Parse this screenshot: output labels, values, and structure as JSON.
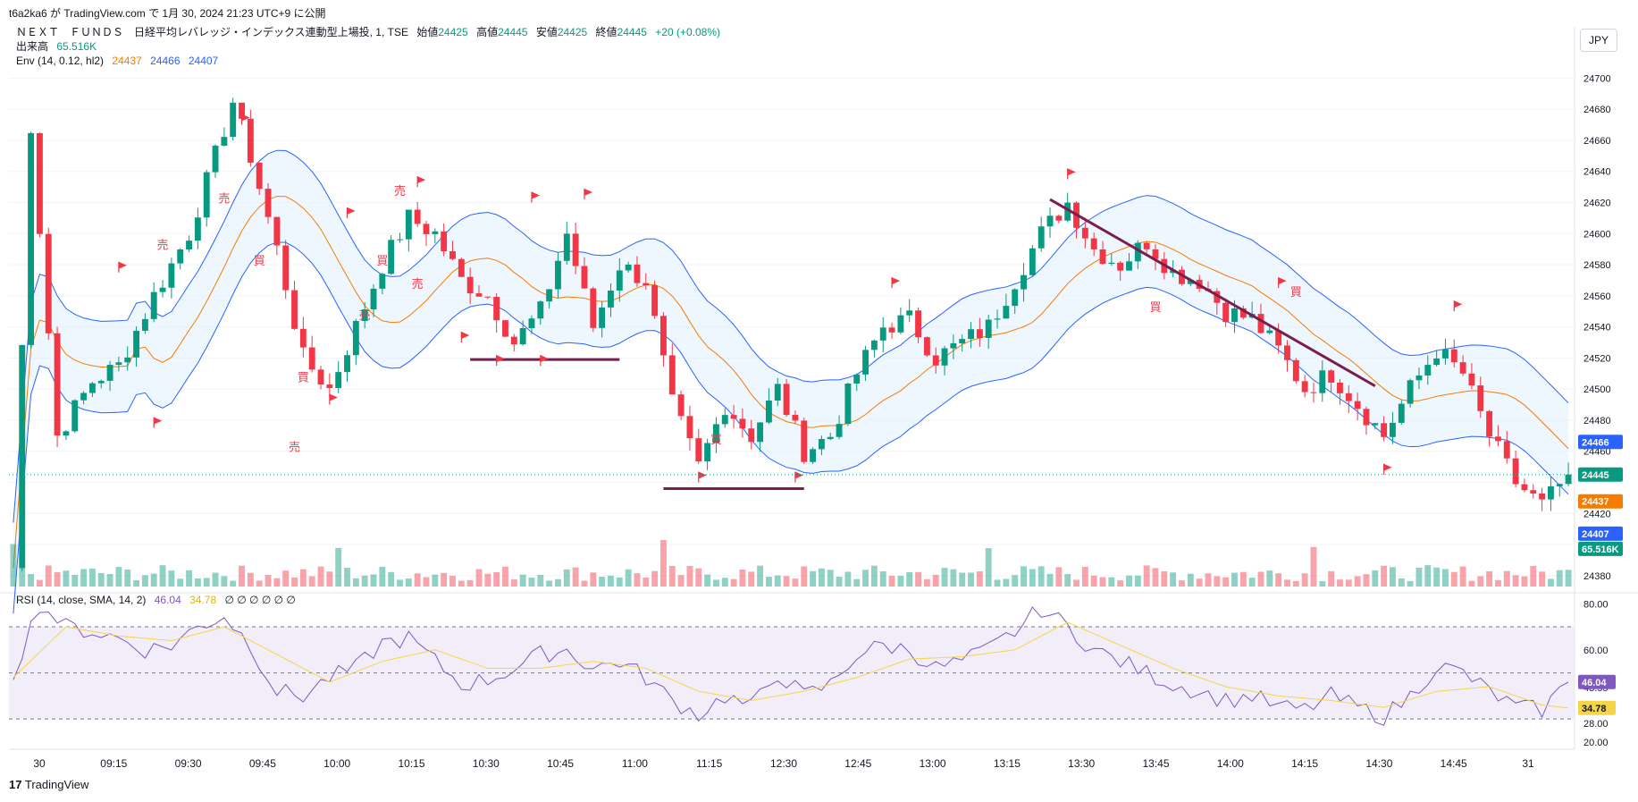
{
  "header": {
    "text": "t6a2ka6 が TradingView.com で 1月 30, 2024 21:23 UTC+9 に公開"
  },
  "currency": "JPY",
  "legend": {
    "symbol": "ＮＥＸＴ　ＦＵＮＤＳ　日経平均レバレッジ・インデックス連動型上場投, 1, TSE",
    "ohlc": [
      {
        "label": "始値",
        "value": "24425"
      },
      {
        "label": "高値",
        "value": "24445"
      },
      {
        "label": "安値",
        "value": "24425"
      },
      {
        "label": "終値",
        "value": "24445"
      }
    ],
    "change": "+20 (+0.08%)",
    "volume_label": "出来高",
    "volume_value": "65.516K",
    "env_label": "Env (14, 0.12, hl2)",
    "env_values": [
      "24437",
      "24466",
      "24407"
    ],
    "rsi_label": "RSI (14, close, SMA, 14, 2)",
    "rsi_values": [
      "46.04",
      "34.78"
    ],
    "rsi_extra": "∅ ∅ ∅ ∅ ∅ ∅"
  },
  "footer": {
    "brand": "TradingView",
    "logo_text": "17"
  },
  "colors": {
    "up": "#089981",
    "down": "#f23645",
    "env_mid": "#f57c00",
    "env_band": "#2962ff",
    "band_fill": "#e3f2fd",
    "rsi": "#7e57c2",
    "rsi_ma": "#f5d547",
    "rsi_fill": "#ede7f6",
    "annotation": "#7b1d4f",
    "flag": "#f23645"
  },
  "chart_data": [
    {
      "type": "line",
      "title": "",
      "price_axis": {
        "ticks": [
          24380,
          24400,
          24420,
          24440,
          24460,
          24480,
          24500,
          24520,
          24540,
          24560,
          24580,
          24600,
          24620,
          24640,
          24660,
          24680,
          24700
        ],
        "labels": [
          "24380",
          "",
          "24420",
          "",
          "24460",
          "24480",
          "24500",
          "24520",
          "24540",
          "24560",
          "24580",
          "24600",
          "24620",
          "24640",
          "24660",
          "24680",
          "24700"
        ],
        "range": [
          24373,
          24710
        ]
      },
      "time_axis": {
        "labels": [
          "30",
          "09:15",
          "09:30",
          "09:45",
          "10:00",
          "10:15",
          "10:30",
          "10:45",
          "11:00",
          "11:15",
          "12:30",
          "12:45",
          "13:00",
          "13:15",
          "13:30",
          "13:45",
          "14:00",
          "14:15",
          "14:30",
          "14:45",
          "31"
        ]
      },
      "price_path": [
        [
          0,
          24385
        ],
        [
          2,
          24670
        ],
        [
          5,
          24470
        ],
        [
          9,
          24505
        ],
        [
          12,
          24515
        ],
        [
          16,
          24560
        ],
        [
          20,
          24600
        ],
        [
          23,
          24650
        ],
        [
          25,
          24685
        ],
        [
          27,
          24650
        ],
        [
          30,
          24590
        ],
        [
          33,
          24520
        ],
        [
          36,
          24500
        ],
        [
          39,
          24540
        ],
        [
          42,
          24580
        ],
        [
          45,
          24610
        ],
        [
          48,
          24600
        ],
        [
          51,
          24570
        ],
        [
          54,
          24560
        ],
        [
          57,
          24530
        ],
        [
          60,
          24550
        ],
        [
          63,
          24600
        ],
        [
          66,
          24540
        ],
        [
          69,
          24580
        ],
        [
          72,
          24570
        ],
        [
          75,
          24490
        ],
        [
          78,
          24450
        ],
        [
          81,
          24490
        ],
        [
          84,
          24470
        ],
        [
          87,
          24500
        ],
        [
          90,
          24460
        ],
        [
          93,
          24470
        ],
        [
          96,
          24510
        ],
        [
          99,
          24540
        ],
        [
          102,
          24545
        ],
        [
          105,
          24520
        ],
        [
          108,
          24530
        ],
        [
          111,
          24540
        ],
        [
          114,
          24570
        ],
        [
          117,
          24600
        ],
        [
          120,
          24620
        ],
        [
          123,
          24590
        ],
        [
          126,
          24580
        ],
        [
          129,
          24595
        ],
        [
          132,
          24575
        ],
        [
          135,
          24570
        ],
        [
          138,
          24550
        ],
        [
          141,
          24545
        ],
        [
          144,
          24525
        ],
        [
          147,
          24500
        ],
        [
          150,
          24510
        ],
        [
          153,
          24490
        ],
        [
          156,
          24470
        ],
        [
          159,
          24500
        ],
        [
          162,
          24525
        ],
        [
          165,
          24510
        ],
        [
          168,
          24470
        ],
        [
          171,
          24440
        ],
        [
          174,
          24425
        ],
        [
          177,
          24445
        ]
      ],
      "envelope": {
        "middle": "24437",
        "upper": "24466",
        "lower": "24407",
        "pct": 0.12
      },
      "current_price": 24445,
      "volume_current": "65.516K",
      "annotations": {
        "sell_marks": [
          [
            24,
            24620
          ],
          [
            17,
            24590
          ],
          [
            44,
            24625
          ],
          [
            46,
            24565
          ],
          [
            40,
            24545
          ],
          [
            32,
            24460
          ]
        ],
        "buy_marks": [
          [
            28,
            24580
          ],
          [
            42,
            24580
          ],
          [
            33,
            24505
          ],
          [
            80,
            24465
          ],
          [
            130,
            24550
          ],
          [
            146,
            24560
          ]
        ],
        "text_sell": "売",
        "text_buy": "買",
        "support_lines": [
          [
            [
              52,
              24519
            ],
            [
              69,
              24519
            ]
          ],
          [
            [
              74,
              24436
            ],
            [
              90,
              24436
            ]
          ]
        ],
        "trend_line": [
          [
            118,
            24622
          ],
          [
            155,
            24502
          ]
        ],
        "flags": [
          [
            12,
            24575
          ],
          [
            16,
            24475
          ],
          [
            26,
            24670
          ],
          [
            36,
            24490
          ],
          [
            38,
            24610
          ],
          [
            46,
            24630
          ],
          [
            51,
            24530
          ],
          [
            55,
            24515
          ],
          [
            60,
            24515
          ],
          [
            59,
            24620
          ],
          [
            65,
            24622
          ],
          [
            78,
            24440
          ],
          [
            89,
            24440
          ],
          [
            100,
            24565
          ],
          [
            120,
            24635
          ],
          [
            144,
            24565
          ],
          [
            156,
            24445
          ],
          [
            164,
            24550
          ]
        ]
      }
    },
    {
      "type": "line",
      "title": "",
      "rsi_axis": {
        "ticks": [
          20,
          28,
          43.55,
          60,
          80
        ],
        "labels": [
          "20.00",
          "28.00",
          "43.55",
          "60.00",
          "80.00"
        ],
        "range": [
          18,
          84
        ]
      },
      "levels": [
        70,
        50,
        30
      ],
      "current_rsi": 46.04,
      "current_ma": 34.78,
      "rsi_path": [
        [
          0,
          50
        ],
        [
          3,
          80
        ],
        [
          6,
          70
        ],
        [
          9,
          68
        ],
        [
          12,
          65
        ],
        [
          15,
          60
        ],
        [
          18,
          62
        ],
        [
          21,
          70
        ],
        [
          24,
          75
        ],
        [
          27,
          62
        ],
        [
          30,
          42
        ],
        [
          33,
          40
        ],
        [
          36,
          48
        ],
        [
          39,
          52
        ],
        [
          42,
          63
        ],
        [
          45,
          65
        ],
        [
          48,
          55
        ],
        [
          51,
          45
        ],
        [
          54,
          47
        ],
        [
          57,
          52
        ],
        [
          60,
          58
        ],
        [
          63,
          60
        ],
        [
          66,
          52
        ],
        [
          69,
          55
        ],
        [
          72,
          48
        ],
        [
          75,
          38
        ],
        [
          78,
          32
        ],
        [
          81,
          40
        ],
        [
          84,
          35
        ],
        [
          87,
          50
        ],
        [
          90,
          40
        ],
        [
          93,
          45
        ],
        [
          96,
          58
        ],
        [
          99,
          62
        ],
        [
          102,
          60
        ],
        [
          105,
          52
        ],
        [
          108,
          55
        ],
        [
          111,
          60
        ],
        [
          114,
          68
        ],
        [
          117,
          78
        ],
        [
          120,
          70
        ],
        [
          123,
          60
        ],
        [
          126,
          55
        ],
        [
          129,
          50
        ],
        [
          132,
          45
        ],
        [
          135,
          42
        ],
        [
          138,
          38
        ],
        [
          141,
          40
        ],
        [
          144,
          35
        ],
        [
          147,
          34
        ],
        [
          150,
          40
        ],
        [
          153,
          35
        ],
        [
          156,
          31
        ],
        [
          159,
          40
        ],
        [
          162,
          53
        ],
        [
          165,
          50
        ],
        [
          168,
          42
        ],
        [
          171,
          35
        ],
        [
          174,
          34
        ],
        [
          177,
          46
        ]
      ],
      "ma_path": [
        [
          0,
          48
        ],
        [
          6,
          70
        ],
        [
          12,
          66
        ],
        [
          18,
          64
        ],
        [
          24,
          70
        ],
        [
          30,
          58
        ],
        [
          36,
          46
        ],
        [
          42,
          55
        ],
        [
          48,
          60
        ],
        [
          54,
          52
        ],
        [
          60,
          52
        ],
        [
          66,
          55
        ],
        [
          72,
          52
        ],
        [
          78,
          42
        ],
        [
          84,
          38
        ],
        [
          90,
          42
        ],
        [
          96,
          48
        ],
        [
          102,
          56
        ],
        [
          108,
          57
        ],
        [
          114,
          60
        ],
        [
          120,
          72
        ],
        [
          126,
          62
        ],
        [
          132,
          52
        ],
        [
          138,
          44
        ],
        [
          144,
          40
        ],
        [
          150,
          38
        ],
        [
          156,
          35
        ],
        [
          162,
          42
        ],
        [
          168,
          44
        ],
        [
          174,
          36
        ],
        [
          177,
          34.78
        ]
      ]
    }
  ]
}
